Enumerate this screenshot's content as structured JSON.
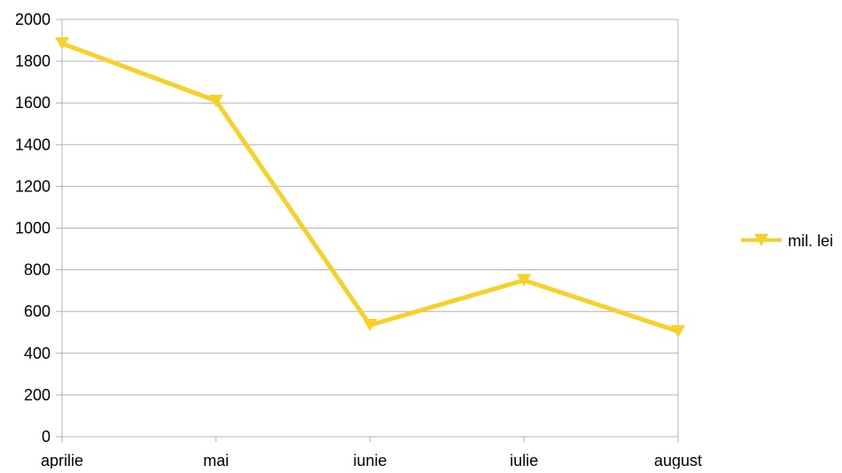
{
  "chart_data": {
    "type": "line",
    "categories": [
      "aprilie",
      "mai",
      "iunie",
      "iulie",
      "august"
    ],
    "series": [
      {
        "name": "mil. lei",
        "values": [
          1885,
          1610,
          535,
          750,
          505
        ],
        "color": "#f7d128",
        "marker": "triangle-down"
      }
    ],
    "ylim": [
      0,
      2000
    ],
    "yticks": [
      0,
      200,
      400,
      600,
      800,
      1000,
      1200,
      1400,
      1600,
      1800,
      2000
    ],
    "grid": true,
    "legend": "right",
    "gridline_color": "#b3b3b3"
  }
}
